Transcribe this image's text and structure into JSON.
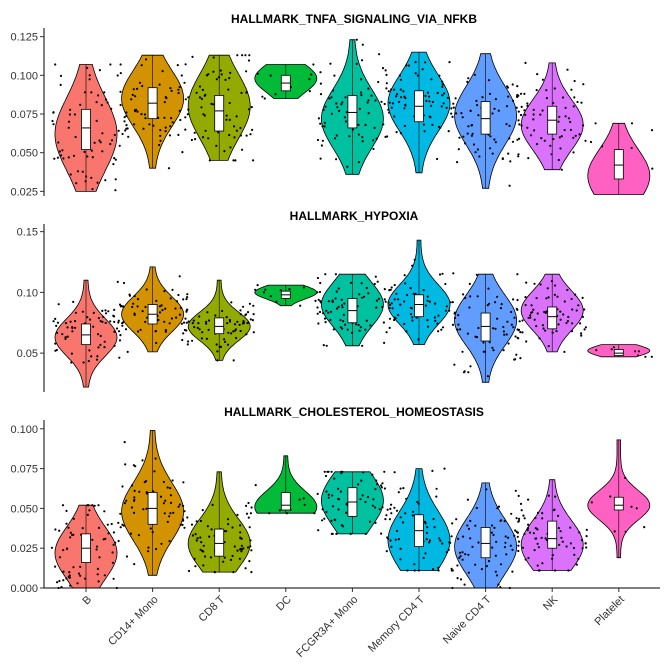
{
  "chart_data": [
    {
      "type": "violin",
      "title": "HALLMARK_TNFA_SIGNALING_VIA_NFKB",
      "categories": [
        "B",
        "CD14+ Mono",
        "CD8 T",
        "DC",
        "FCGR3A+ Mono",
        "Memory CD4 T",
        "Naive CD4 T",
        "NK",
        "Platelet"
      ],
      "colors": [
        "#F8766D",
        "#D39200",
        "#93AA00",
        "#00BA38",
        "#00C19F",
        "#00B9E3",
        "#619CFF",
        "#DB72FB",
        "#FF61C3"
      ],
      "ylim": [
        0.022,
        0.128
      ],
      "yticks": [
        0.025,
        0.05,
        0.075,
        0.1,
        0.125
      ],
      "yticklabels": [
        "0.025",
        "0.050",
        "0.075",
        "0.100",
        "0.125"
      ],
      "violins": [
        {
          "min": 0.025,
          "max": 0.107,
          "q1": 0.052,
          "median": 0.066,
          "q3": 0.078,
          "mode": 0.062
        },
        {
          "min": 0.04,
          "max": 0.113,
          "q1": 0.072,
          "median": 0.082,
          "q3": 0.092,
          "mode": 0.085
        },
        {
          "min": 0.045,
          "max": 0.113,
          "q1": 0.064,
          "median": 0.077,
          "q3": 0.087,
          "mode": 0.08
        },
        {
          "min": 0.085,
          "max": 0.107,
          "q1": 0.09,
          "median": 0.095,
          "q3": 0.1,
          "mode": 0.098
        },
        {
          "min": 0.036,
          "max": 0.123,
          "q1": 0.066,
          "median": 0.076,
          "q3": 0.087,
          "mode": 0.072
        },
        {
          "min": 0.037,
          "max": 0.115,
          "q1": 0.07,
          "median": 0.08,
          "q3": 0.09,
          "mode": 0.082
        },
        {
          "min": 0.027,
          "max": 0.114,
          "q1": 0.062,
          "median": 0.072,
          "q3": 0.083,
          "mode": 0.074
        },
        {
          "min": 0.039,
          "max": 0.108,
          "q1": 0.062,
          "median": 0.071,
          "q3": 0.08,
          "mode": 0.068
        },
        {
          "min": 0.023,
          "max": 0.069,
          "q1": 0.033,
          "median": 0.042,
          "q3": 0.052,
          "mode": 0.035
        }
      ]
    },
    {
      "type": "violin",
      "title": "HALLMARK_HYPOXIA",
      "categories": [
        "B",
        "CD14+ Mono",
        "CD8 T",
        "DC",
        "FCGR3A+ Mono",
        "Memory CD4 T",
        "Naive CD4 T",
        "NK",
        "Platelet"
      ],
      "colors": [
        "#F8766D",
        "#D39200",
        "#93AA00",
        "#00BA38",
        "#00C19F",
        "#00B9E3",
        "#619CFF",
        "#DB72FB",
        "#FF61C3"
      ],
      "ylim": [
        0.018,
        0.153
      ],
      "yticks": [
        0.05,
        0.1,
        0.15
      ],
      "yticklabels": [
        "0.05",
        "0.10",
        "0.15"
      ],
      "violins": [
        {
          "min": 0.022,
          "max": 0.11,
          "q1": 0.057,
          "median": 0.065,
          "q3": 0.074,
          "mode": 0.063
        },
        {
          "min": 0.051,
          "max": 0.121,
          "q1": 0.074,
          "median": 0.082,
          "q3": 0.09,
          "mode": 0.082
        },
        {
          "min": 0.044,
          "max": 0.11,
          "q1": 0.066,
          "median": 0.072,
          "q3": 0.079,
          "mode": 0.072
        },
        {
          "min": 0.089,
          "max": 0.106,
          "q1": 0.095,
          "median": 0.098,
          "q3": 0.101,
          "mode": 0.1
        },
        {
          "min": 0.056,
          "max": 0.115,
          "q1": 0.075,
          "median": 0.085,
          "q3": 0.095,
          "mode": 0.09
        },
        {
          "min": 0.057,
          "max": 0.143,
          "q1": 0.08,
          "median": 0.09,
          "q3": 0.098,
          "mode": 0.09
        },
        {
          "min": 0.026,
          "max": 0.115,
          "q1": 0.06,
          "median": 0.072,
          "q3": 0.083,
          "mode": 0.077
        },
        {
          "min": 0.051,
          "max": 0.115,
          "q1": 0.07,
          "median": 0.08,
          "q3": 0.088,
          "mode": 0.085
        },
        {
          "min": 0.047,
          "max": 0.057,
          "q1": 0.048,
          "median": 0.05,
          "q3": 0.053,
          "mode": 0.052
        }
      ]
    },
    {
      "type": "violin",
      "title": "HALLMARK_CHOLESTEROL_HOMEOSTASIS",
      "categories": [
        "B",
        "CD14+ Mono",
        "CD8 T",
        "DC",
        "FCGR3A+ Mono",
        "Memory CD4 T",
        "Naive CD4 T",
        "NK",
        "Platelet"
      ],
      "colors": [
        "#F8766D",
        "#D39200",
        "#93AA00",
        "#00BA38",
        "#00C19F",
        "#00B9E3",
        "#619CFF",
        "#DB72FB",
        "#FF61C3"
      ],
      "ylim": [
        0.0,
        0.103
      ],
      "yticks": [
        0.0,
        0.025,
        0.05,
        0.075,
        0.1
      ],
      "yticklabels": [
        "0.000",
        "0.025",
        "0.050",
        "0.075",
        "0.100"
      ],
      "violins": [
        {
          "min": 0.0,
          "max": 0.052,
          "q1": 0.016,
          "median": 0.025,
          "q3": 0.034,
          "mode": 0.022
        },
        {
          "min": 0.008,
          "max": 0.099,
          "q1": 0.04,
          "median": 0.05,
          "q3": 0.06,
          "mode": 0.048
        },
        {
          "min": 0.01,
          "max": 0.073,
          "q1": 0.02,
          "median": 0.028,
          "q3": 0.037,
          "mode": 0.028
        },
        {
          "min": 0.047,
          "max": 0.083,
          "q1": 0.049,
          "median": 0.052,
          "q3": 0.06,
          "mode": 0.051
        },
        {
          "min": 0.034,
          "max": 0.073,
          "q1": 0.045,
          "median": 0.054,
          "q3": 0.063,
          "mode": 0.055
        },
        {
          "min": 0.011,
          "max": 0.075,
          "q1": 0.026,
          "median": 0.036,
          "q3": 0.046,
          "mode": 0.03
        },
        {
          "min": 0.0,
          "max": 0.066,
          "q1": 0.019,
          "median": 0.028,
          "q3": 0.038,
          "mode": 0.026
        },
        {
          "min": 0.011,
          "max": 0.068,
          "q1": 0.025,
          "median": 0.031,
          "q3": 0.042,
          "mode": 0.027
        },
        {
          "min": 0.019,
          "max": 0.093,
          "q1": 0.049,
          "median": 0.052,
          "q3": 0.057,
          "mode": 0.052
        }
      ]
    }
  ]
}
